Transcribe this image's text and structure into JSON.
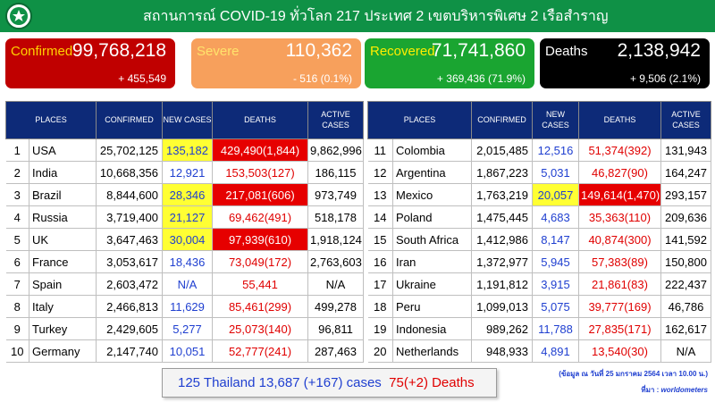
{
  "header": {
    "title": "สถานการณ์ COVID-19 ทั่วโลก 217 ประเทศ 2 เขตบริหารพิเศษ 2 เรือสำราญ",
    "logo_icon": "ministry-of-public-health-logo",
    "bg_color": "#0f9146"
  },
  "cards": {
    "confirmed": {
      "label": "Confirmed",
      "value": "99,768,218",
      "change": "+ 455,549",
      "color": "#c00000"
    },
    "severe": {
      "label": "Severe",
      "value": "110,362",
      "change": "- 516 (0.1%)",
      "color": "#f7a05c"
    },
    "recovered": {
      "label": "Recovered",
      "value": "71,741,860",
      "change": "+ 369,436 (71.9%)",
      "color": "#1aa531"
    },
    "deaths": {
      "label": "Deaths",
      "value": "2,138,942",
      "change": "+ 9,506 (2.1%)",
      "color": "#000000"
    }
  },
  "columns": [
    "PLACES",
    "CONFIRMED",
    "NEW CASES",
    "DEATHS",
    "ACTIVE CASES"
  ],
  "table_left": [
    {
      "rank": "1",
      "place": "USA",
      "confirmed": "25,702,125",
      "new_cases": "135,182",
      "deaths": "429,490(1,844)",
      "active": "9,862,996",
      "new_highlight": true,
      "death_highlight": true
    },
    {
      "rank": "2",
      "place": "India",
      "confirmed": "10,668,356",
      "new_cases": "12,921",
      "deaths": "153,503(127)",
      "active": "186,115",
      "new_highlight": false,
      "death_highlight": false
    },
    {
      "rank": "3",
      "place": "Brazil",
      "confirmed": "8,844,600",
      "new_cases": "28,346",
      "deaths": "217,081(606)",
      "active": "973,749",
      "new_highlight": true,
      "death_highlight": true
    },
    {
      "rank": "4",
      "place": "Russia",
      "confirmed": "3,719,400",
      "new_cases": "21,127",
      "deaths": "69,462(491)",
      "active": "518,178",
      "new_highlight": true,
      "death_highlight": false
    },
    {
      "rank": "5",
      "place": "UK",
      "confirmed": "3,647,463",
      "new_cases": "30,004",
      "deaths": "97,939(610)",
      "active": "1,918,124",
      "new_highlight": true,
      "death_highlight": true
    },
    {
      "rank": "6",
      "place": "France",
      "confirmed": "3,053,617",
      "new_cases": "18,436",
      "deaths": "73,049(172)",
      "active": "2,763,603",
      "new_highlight": false,
      "death_highlight": false
    },
    {
      "rank": "7",
      "place": "Spain",
      "confirmed": "2,603,472",
      "new_cases": "N/A",
      "deaths": "55,441",
      "active": "N/A",
      "new_highlight": false,
      "death_highlight": false
    },
    {
      "rank": "8",
      "place": "Italy",
      "confirmed": "2,466,813",
      "new_cases": "11,629",
      "deaths": "85,461(299)",
      "active": "499,278",
      "new_highlight": false,
      "death_highlight": false
    },
    {
      "rank": "9",
      "place": "Turkey",
      "confirmed": "2,429,605",
      "new_cases": "5,277",
      "deaths": "25,073(140)",
      "active": "96,811",
      "new_highlight": false,
      "death_highlight": false
    },
    {
      "rank": "10",
      "place": "Germany",
      "confirmed": "2,147,740",
      "new_cases": "10,051",
      "deaths": "52,777(241)",
      "active": "287,463",
      "new_highlight": false,
      "death_highlight": false
    }
  ],
  "table_right": [
    {
      "rank": "11",
      "place": "Colombia",
      "confirmed": "2,015,485",
      "new_cases": "12,516",
      "deaths": "51,374(392)",
      "active": "131,943",
      "new_highlight": false,
      "death_highlight": false
    },
    {
      "rank": "12",
      "place": "Argentina",
      "confirmed": "1,867,223",
      "new_cases": "5,031",
      "deaths": "46,827(90)",
      "active": "164,247",
      "new_highlight": false,
      "death_highlight": false
    },
    {
      "rank": "13",
      "place": "Mexico",
      "confirmed": "1,763,219",
      "new_cases": "20,057",
      "deaths": "149,614(1,470)",
      "active": "293,157",
      "new_highlight": true,
      "death_highlight": true
    },
    {
      "rank": "14",
      "place": "Poland",
      "confirmed": "1,475,445",
      "new_cases": "4,683",
      "deaths": "35,363(110)",
      "active": "209,636",
      "new_highlight": false,
      "death_highlight": false
    },
    {
      "rank": "15",
      "place": "South Africa",
      "confirmed": "1,412,986",
      "new_cases": "8,147",
      "deaths": "40,874(300)",
      "active": "141,592",
      "new_highlight": false,
      "death_highlight": false
    },
    {
      "rank": "16",
      "place": "Iran",
      "confirmed": "1,372,977",
      "new_cases": "5,945",
      "deaths": "57,383(89)",
      "active": "150,800",
      "new_highlight": false,
      "death_highlight": false
    },
    {
      "rank": "17",
      "place": "Ukraine",
      "confirmed": "1,191,812",
      "new_cases": "3,915",
      "deaths": "21,861(83)",
      "active": "222,437",
      "new_highlight": false,
      "death_highlight": false
    },
    {
      "rank": "18",
      "place": "Peru",
      "confirmed": "1,099,013",
      "new_cases": "5,075",
      "deaths": "39,777(169)",
      "active": "46,786",
      "new_highlight": false,
      "death_highlight": false
    },
    {
      "rank": "19",
      "place": "Indonesia",
      "confirmed": "989,262",
      "new_cases": "11,788",
      "deaths": "27,835(171)",
      "active": "162,617",
      "new_highlight": false,
      "death_highlight": false
    },
    {
      "rank": "20",
      "place": "Netherlands",
      "confirmed": "948,933",
      "new_cases": "4,891",
      "deaths": "13,540(30)",
      "active": "N/A",
      "new_highlight": false,
      "death_highlight": false
    }
  ],
  "thailand": {
    "cases_text": "125 Thailand 13,687 (+167) cases",
    "deaths_text": "75(+2) Deaths"
  },
  "footer": {
    "date_note": "(ข้อมูล ณ วันที่ 25 มกราคม 2564 เวลา 10.00 น.)",
    "source_label": "ที่มา :",
    "source_name": "worldometers"
  }
}
